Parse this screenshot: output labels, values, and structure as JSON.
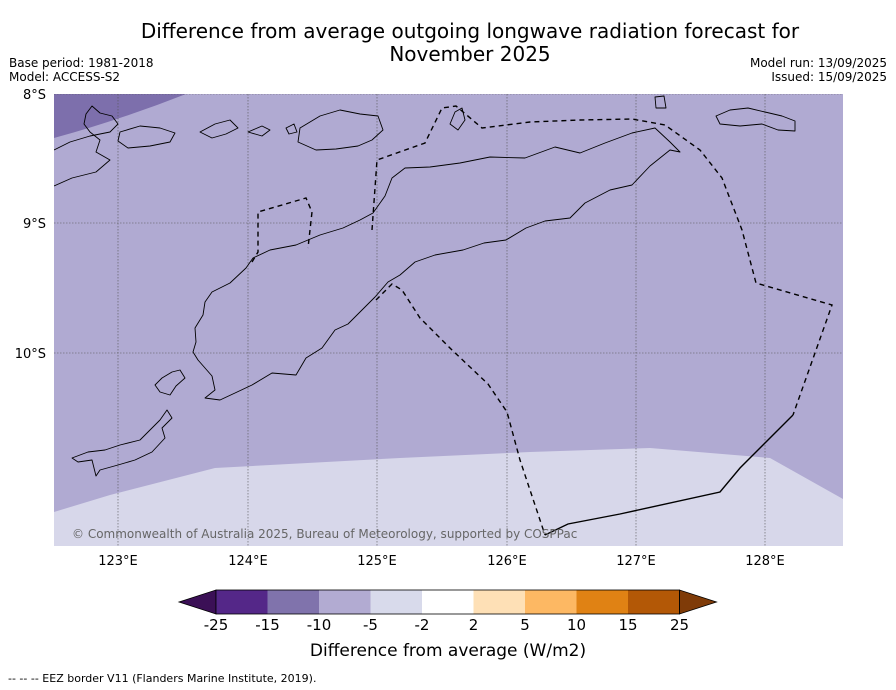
{
  "header": {
    "title_line1": "Difference from average outgoing longwave radiation forecast for",
    "title_line2": "November 2025",
    "base_period": "Base period: 1981-2018",
    "model": "Model: ACCESS-S2",
    "model_run": "Model run: 13/09/2025",
    "issued": "Issued: 15/09/2025"
  },
  "map": {
    "lon_ticks": [
      "123°E",
      "124°E",
      "125°E",
      "126°E",
      "127°E",
      "128°E"
    ],
    "lat_ticks": [
      "8°S",
      "9°S",
      "10°S"
    ],
    "copyright": "© Commonwealth of Australia 2025, Bureau of Meteorology, supported by COSPPac",
    "colors": {
      "band_minus15_minus10": "#7d6fac",
      "band_minus10_minus5": "#b0aad2",
      "band_minus5_minus2": "#d7d7ea",
      "coastline": "#000000",
      "grid": "#555555"
    }
  },
  "colorbar": {
    "tick_labels": [
      "-25",
      "-15",
      "-10",
      "-5",
      "-2",
      "2",
      "5",
      "10",
      "15",
      "25"
    ],
    "colors": [
      "#3b1056",
      "#542788",
      "#8073ac",
      "#b2abd2",
      "#d8daeb",
      "#ffffff",
      "#fee0b6",
      "#fdb863",
      "#e08214",
      "#b35806",
      "#7f3b08"
    ],
    "label": "Difference from average (W/m2)"
  },
  "footer": {
    "legend": "--  --  -- EEZ border V11 (Flanders Marine Institute, 2019)."
  }
}
